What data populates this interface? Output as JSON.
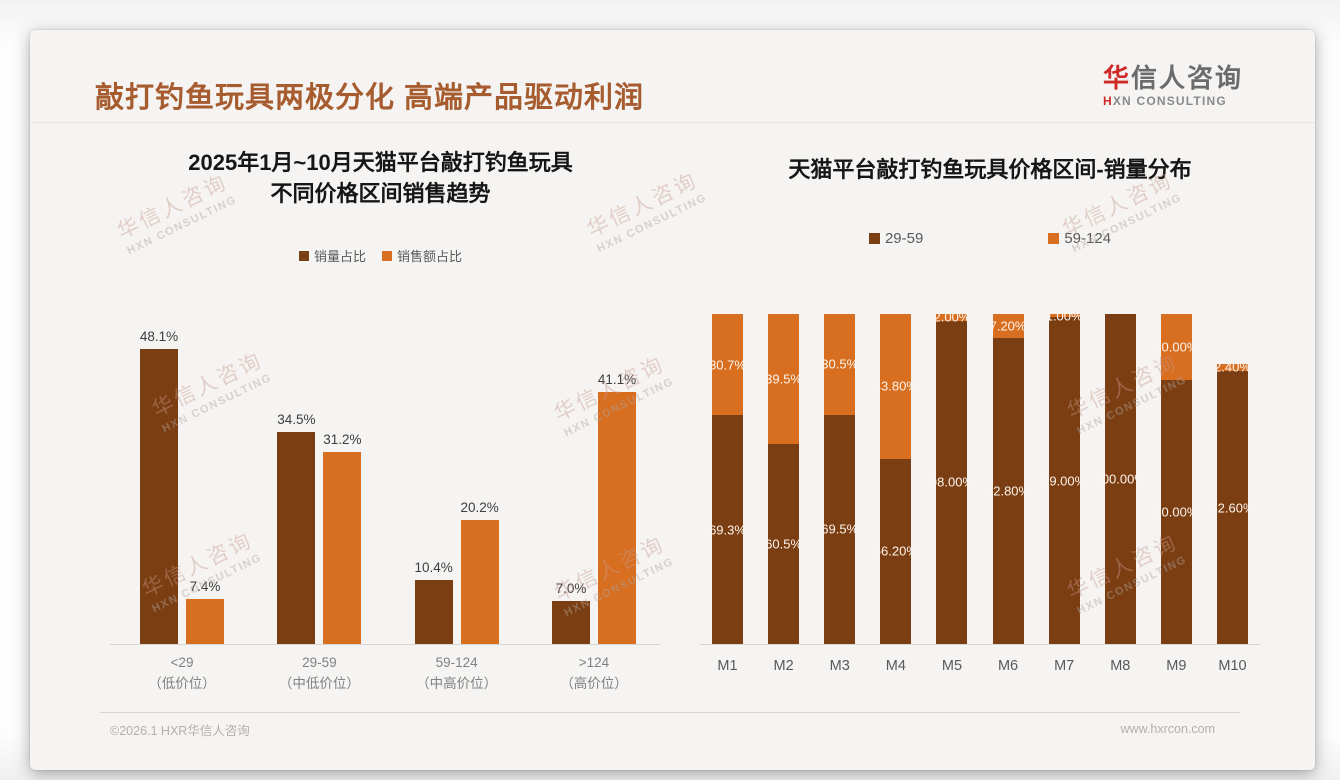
{
  "slide": {
    "title": "敲打钓鱼玩具两极分化 高端产品驱动利润",
    "logo": {
      "cn_highlight": "华",
      "cn_rest": "信人咨询",
      "en_highlight": "H",
      "en_rest": "XN CONSULTING"
    },
    "footer": {
      "copyright": "©2026.1 HXR华信人咨询",
      "website": "www.hxrcon.com"
    },
    "watermark": {
      "line1": "华信人咨询",
      "line2": "HXN CONSULTING"
    }
  },
  "colors": {
    "title_brown": "#a65c2e",
    "series_dark_brown": "#7b3e12",
    "series_orange": "#d76e20",
    "logo_red": "#cf2a27",
    "card_background": "#f5f4f2"
  },
  "chart_data": [
    {
      "type": "bar",
      "title_lines": [
        "2025年1月~10月天猫平台敲打钓鱼玩具",
        "不同价格区间销售趋势"
      ],
      "legend_position": "top",
      "grid": false,
      "unit": "%",
      "ylim": [
        0,
        50
      ],
      "categories": [
        "<29",
        "29-59",
        "59-124",
        ">124"
      ],
      "category_sublabels": [
        "（低价位）",
        "（中低价位）",
        "（中高价位）",
        "（高价位）"
      ],
      "series": [
        {
          "name": "销量占比",
          "color": "#7b3e12",
          "values": [
            48.1,
            34.5,
            10.4,
            7.0
          ],
          "labels": [
            "48.1%",
            "34.5%",
            "10.4%",
            "7.0%"
          ]
        },
        {
          "name": "销售额占比",
          "color": "#d76e20",
          "values": [
            7.4,
            31.2,
            20.2,
            41.1
          ],
          "labels": [
            "7.4%",
            "31.2%",
            "20.2%",
            "41.1%"
          ]
        }
      ]
    },
    {
      "type": "bar",
      "stacked": true,
      "title_lines": [
        "天猫平台敲打钓鱼玩具价格区间-销量分布"
      ],
      "legend_position": "top",
      "grid": false,
      "unit": "%",
      "ylim": [
        0,
        100
      ],
      "categories": [
        "M1",
        "M2",
        "M3",
        "M4",
        "M5",
        "M6",
        "M7",
        "M8",
        "M9",
        "M10"
      ],
      "series": [
        {
          "name": "29-59",
          "color": "#7b3e12",
          "values": [
            69.3,
            60.5,
            69.5,
            56.2,
            98.0,
            92.8,
            99.0,
            100.0,
            80.0,
            82.6
          ],
          "labels": [
            "69.3%",
            "60.5%",
            "69.5%",
            "56.20%",
            "98.00%",
            "92.80%",
            "99.00%",
            "100.00%",
            "80.00%",
            "82.60%"
          ]
        },
        {
          "name": "59-124",
          "color": "#d76e20",
          "values": [
            30.7,
            39.5,
            30.5,
            43.8,
            2.0,
            7.2,
            1.0,
            0.0,
            20.0,
            2.4
          ],
          "labels": [
            "30.7%",
            "39.5%",
            "30.5%",
            "43.80%",
            "2.00%",
            "7.20%",
            "1.00%",
            "",
            "20.00%",
            "2.40%"
          ]
        }
      ]
    }
  ]
}
